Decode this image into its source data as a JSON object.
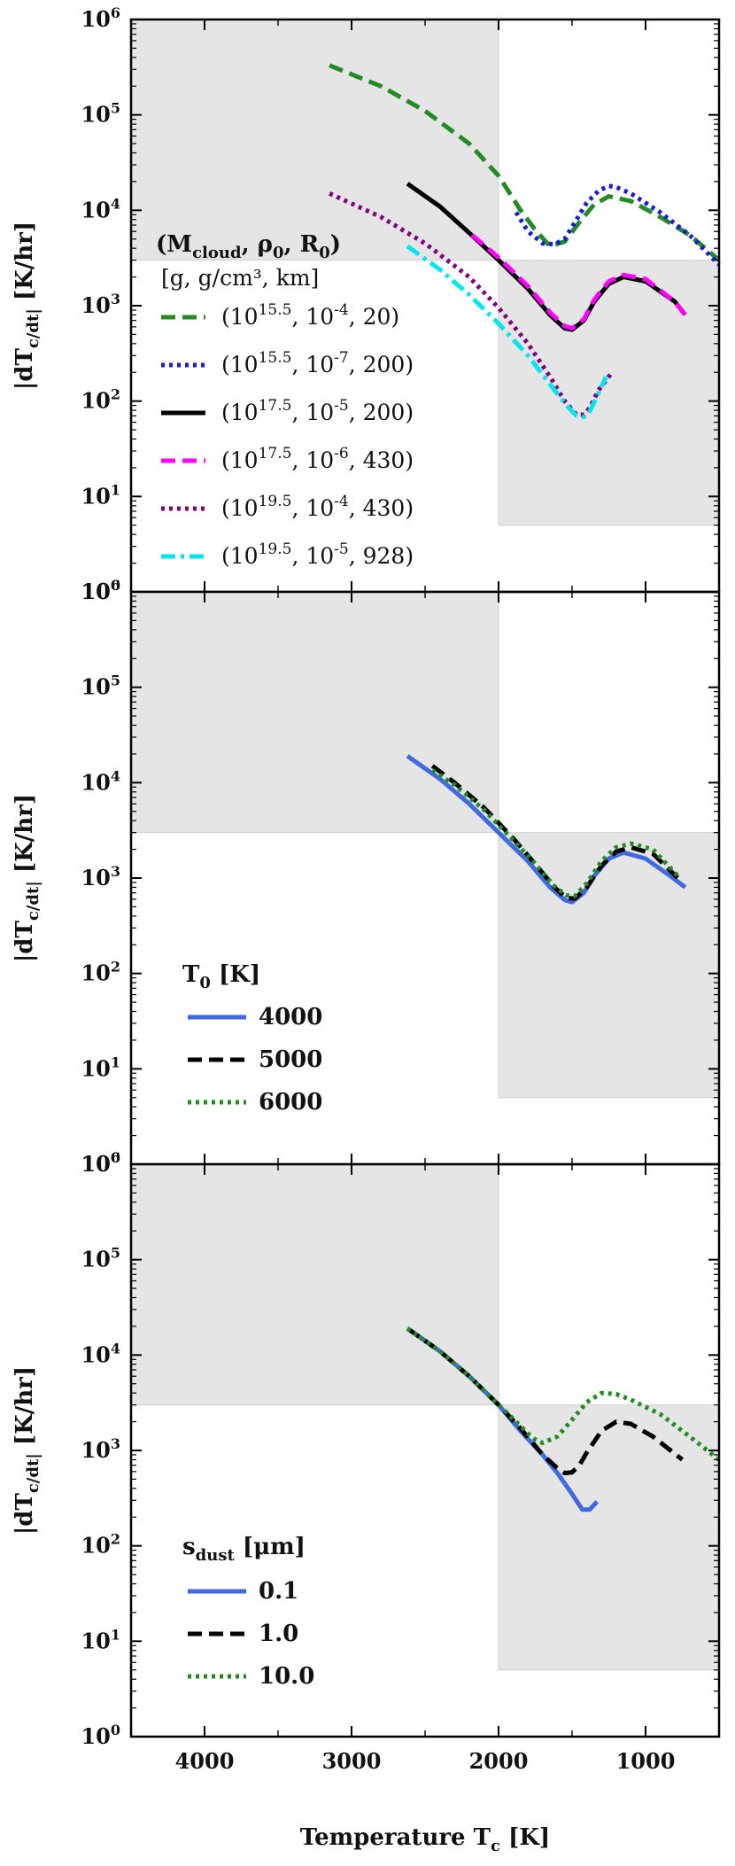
{
  "x_axis": {
    "label": "Temperature T_c [K]",
    "ticks": [
      4000,
      3000,
      2000,
      1000
    ],
    "range": [
      4500,
      500
    ],
    "reversed": true
  },
  "y_axis": {
    "label": "|dT_c/dt| [K/hr]",
    "scale": "log",
    "ticks": [
      "10^0",
      "10^1",
      "10^2",
      "10^3",
      "10^4",
      "10^5",
      "10^6"
    ],
    "range": [
      1,
      1000000
    ]
  },
  "shading": {
    "color": "#e5e5e5",
    "regions": [
      {
        "x": [
          4500,
          2000
        ],
        "y": [
          3000,
          1000000
        ]
      },
      {
        "x": [
          2000,
          500
        ],
        "y": [
          5,
          3000
        ]
      }
    ]
  },
  "panels": [
    {
      "legend": {
        "title": "(M_cloud, ρ_0, R_0)",
        "subtitle": "[g, g/cm³, km]",
        "entries": [
          {
            "text": "(10^15.5, 10^-4, 20)",
            "color": "#228B22",
            "dash": "dashed"
          },
          {
            "text": "(10^15.5, 10^-7, 200)",
            "color": "#1a1adb",
            "dash": "dotted"
          },
          {
            "text": "(10^17.5, 10^-5, 200)",
            "color": "#000000",
            "dash": "solid"
          },
          {
            "text": "(10^17.5, 10^-6, 430)",
            "color": "#ff00ff",
            "dash": "dashed"
          },
          {
            "text": "(10^19.5, 10^-4, 430)",
            "color": "#800080",
            "dash": "dotted"
          },
          {
            "text": "(10^19.5, 10^-5, 928)",
            "color": "#00e5ee",
            "dash": "dashdot"
          }
        ]
      }
    },
    {
      "legend": {
        "title": "T_0 [K]",
        "entries": [
          {
            "text": "4000",
            "color": "#4169E1",
            "dash": "solid"
          },
          {
            "text": "5000",
            "color": "#000000",
            "dash": "dashed"
          },
          {
            "text": "6000",
            "color": "#228B22",
            "dash": "dotted"
          }
        ]
      }
    },
    {
      "legend": {
        "title": "s_dust [μm]",
        "entries": [
          {
            "text": "0.1",
            "color": "#4169E1",
            "dash": "solid"
          },
          {
            "text": "1.0",
            "color": "#000000",
            "dash": "dashed"
          },
          {
            "text": "10.0",
            "color": "#228B22",
            "dash": "dotted"
          }
        ]
      }
    }
  ],
  "chart_data": [
    {
      "type": "line",
      "series": [
        {
          "color": "#228B22",
          "dash": "dashed",
          "x": [
            3150,
            2800,
            2500,
            2200,
            2000,
            1850,
            1750,
            1650,
            1550,
            1450,
            1350,
            1250,
            1100,
            900,
            700,
            500
          ],
          "y": [
            330000,
            200000,
            110000,
            50000,
            23000,
            10000,
            6200,
            4200,
            4700,
            7500,
            11500,
            14000,
            12500,
            8500,
            5500,
            3000
          ]
        },
        {
          "color": "#1a1adb",
          "dash": "dotted",
          "x": [
            1880,
            1800,
            1700,
            1620,
            1550,
            1480,
            1400,
            1320,
            1250,
            1200,
            1100,
            900,
            700,
            500
          ],
          "y": [
            9500,
            6000,
            4500,
            4400,
            5000,
            7500,
            12000,
            16000,
            18000,
            17500,
            15000,
            9500,
            5500,
            2700
          ]
        },
        {
          "color": "#000000",
          "dash": "solid",
          "x": [
            2620,
            2400,
            2200,
            2000,
            1800,
            1650,
            1550,
            1500,
            1420,
            1350,
            1250,
            1150,
            1000,
            800,
            730
          ],
          "y": [
            19000,
            11000,
            5800,
            3000,
            1500,
            800,
            580,
            560,
            700,
            1100,
            1700,
            2000,
            1800,
            1100,
            800
          ]
        },
        {
          "color": "#ff00ff",
          "dash": "dashed",
          "x": [
            2180,
            2000,
            1800,
            1650,
            1550,
            1500,
            1420,
            1350,
            1250,
            1150,
            1000,
            800,
            730
          ],
          "y": [
            5500,
            3200,
            1600,
            850,
            610,
            580,
            720,
            1150,
            1800,
            2100,
            1900,
            1100,
            800
          ]
        },
        {
          "color": "#800080",
          "dash": "dotted",
          "x": [
            3150,
            2800,
            2500,
            2200,
            2000,
            1800,
            1650,
            1550,
            1470,
            1420,
            1380,
            1320,
            1250,
            1230
          ],
          "y": [
            15000,
            8500,
            4500,
            2000,
            950,
            400,
            180,
            100,
            72,
            72,
            85,
            130,
            180,
            200
          ]
        },
        {
          "color": "#00e5ee",
          "dash": "dashdot",
          "x": [
            2620,
            2400,
            2200,
            2000,
            1800,
            1650,
            1550,
            1470,
            1420,
            1380,
            1320,
            1270
          ],
          "y": [
            4200,
            2400,
            1300,
            650,
            300,
            150,
            95,
            70,
            68,
            78,
            120,
            180
          ]
        }
      ]
    },
    {
      "type": "line",
      "series": [
        {
          "color": "#4169E1",
          "dash": "solid",
          "x": [
            2620,
            2400,
            2200,
            2000,
            1800,
            1650,
            1550,
            1500,
            1420,
            1350,
            1250,
            1150,
            1000,
            850,
            730
          ],
          "y": [
            19000,
            11000,
            6000,
            3000,
            1500,
            800,
            590,
            560,
            700,
            1050,
            1600,
            1850,
            1600,
            1100,
            800
          ]
        },
        {
          "color": "#000000",
          "dash": "dashed",
          "x": [
            2450,
            2300,
            2100,
            1900,
            1750,
            1620,
            1540,
            1480,
            1400,
            1300,
            1200,
            1100,
            950,
            780
          ],
          "y": [
            15000,
            10000,
            5500,
            2600,
            1400,
            800,
            620,
            610,
            800,
            1350,
            1900,
            2100,
            1800,
            1000
          ]
        },
        {
          "color": "#228B22",
          "dash": "dotted",
          "x": [
            2450,
            2300,
            2100,
            1900,
            1750,
            1620,
            1540,
            1480,
            1400,
            1300,
            1200,
            1100,
            950,
            780
          ],
          "y": [
            13500,
            9500,
            5200,
            2500,
            1400,
            820,
            660,
            650,
            880,
            1500,
            2100,
            2300,
            2000,
            1050
          ]
        }
      ]
    },
    {
      "type": "line",
      "series": [
        {
          "color": "#4169E1",
          "dash": "solid",
          "x": [
            2620,
            2400,
            2200,
            2000,
            1850,
            1700,
            1600,
            1500,
            1430,
            1380,
            1330
          ],
          "y": [
            19000,
            11000,
            6000,
            3000,
            1600,
            900,
            580,
            350,
            240,
            240,
            290
          ]
        },
        {
          "color": "#000000",
          "dash": "dashed",
          "x": [
            2620,
            2400,
            2200,
            2000,
            1850,
            1700,
            1600,
            1550,
            1500,
            1450,
            1400,
            1300,
            1200,
            1100,
            950,
            750
          ],
          "y": [
            19000,
            11000,
            6000,
            3000,
            1700,
            900,
            650,
            580,
            590,
            700,
            950,
            1600,
            2000,
            1900,
            1400,
            800
          ]
        },
        {
          "color": "#228B22",
          "dash": "dotted",
          "x": [
            2620,
            2400,
            2200,
            2000,
            1850,
            1800,
            1750,
            1700,
            1600,
            1500,
            1400,
            1300,
            1200,
            1100,
            900,
            700,
            500
          ],
          "y": [
            19000,
            11000,
            6000,
            3000,
            1800,
            1500,
            1300,
            1200,
            1400,
            2100,
            3200,
            4000,
            3900,
            3400,
            2400,
            1400,
            800
          ]
        }
      ]
    }
  ]
}
